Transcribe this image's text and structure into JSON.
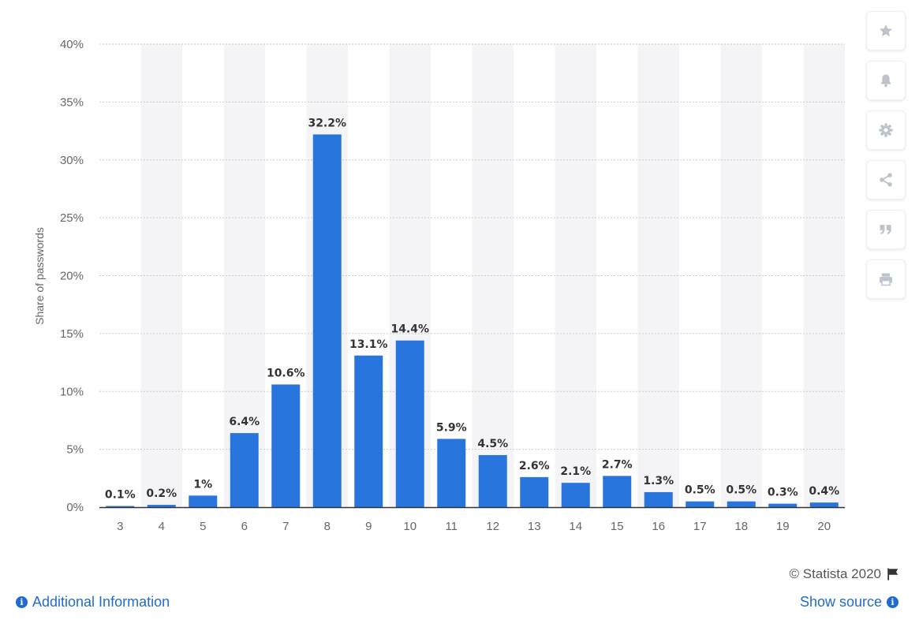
{
  "chart_data": {
    "type": "bar",
    "title": "",
    "xlabel": "",
    "ylabel": "Share of passwords",
    "categories": [
      "3",
      "4",
      "5",
      "6",
      "7",
      "8",
      "9",
      "10",
      "11",
      "12",
      "13",
      "14",
      "15",
      "16",
      "17",
      "18",
      "19",
      "20"
    ],
    "values": [
      0.1,
      0.2,
      1,
      6.4,
      10.6,
      32.2,
      13.1,
      14.4,
      5.9,
      4.5,
      2.6,
      2.1,
      2.7,
      1.3,
      0.5,
      0.5,
      0.3,
      0.4
    ],
    "data_labels": [
      "0.1%",
      "0.2%",
      "1%",
      "6.4%",
      "10.6%",
      "32.2%",
      "13.1%",
      "14.4%",
      "5.9%",
      "4.5%",
      "2.6%",
      "2.1%",
      "2.7%",
      "1.3%",
      "0.5%",
      "0.5%",
      "0.3%",
      "0.4%"
    ],
    "ylim": [
      0,
      40
    ],
    "yticks": [
      0,
      5,
      10,
      15,
      20,
      25,
      30,
      35,
      40
    ],
    "ytick_labels": [
      "0%",
      "5%",
      "10%",
      "15%",
      "20%",
      "25%",
      "30%",
      "35%",
      "40%"
    ],
    "grid": true,
    "bar_color": "#2876dd",
    "alternating_column_band_color": "#f4f4f6"
  },
  "toolbar": {
    "icons": [
      "star-icon",
      "bell-icon",
      "gear-icon",
      "share-icon",
      "quote-icon",
      "print-icon"
    ]
  },
  "footer": {
    "copyright": "© Statista 2020",
    "additional_info": "Additional Information",
    "show_source": "Show source"
  },
  "colors": {
    "link": "#1f6bcf",
    "icon": "#bcc3cc"
  }
}
